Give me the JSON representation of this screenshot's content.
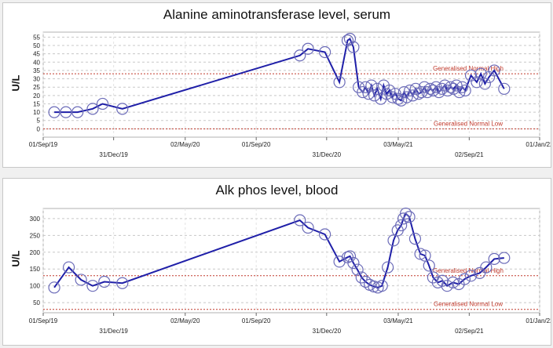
{
  "chart_data": [
    {
      "type": "line",
      "title": "Alanine aminotransferase level, serum",
      "ylabel": "U/L",
      "xlabel": "",
      "ylim": [
        -5,
        58
      ],
      "yticks": [
        0,
        5,
        10,
        15,
        20,
        25,
        30,
        35,
        40,
        45,
        50,
        55
      ],
      "xlim": [
        "2019-09-01",
        "2022-01-01"
      ],
      "xticks": [
        {
          "date": "2019-09-01",
          "label": "01/Sep/19",
          "row": 0
        },
        {
          "date": "2019-12-31",
          "label": "31/Dec/19",
          "row": 1
        },
        {
          "date": "2020-05-02",
          "label": "02/May/20",
          "row": 0
        },
        {
          "date": "2020-09-01",
          "label": "01/Sep/20",
          "row": 0
        },
        {
          "date": "2020-12-31",
          "label": "31/Dec/20",
          "row": 1
        },
        {
          "date": "2021-05-03",
          "label": "03/May/21",
          "row": 0
        },
        {
          "date": "2021-09-02",
          "label": "02/Sep/21",
          "row": 1
        },
        {
          "date": "2022-01-01",
          "label": "01/Jan/22",
          "row": 0
        }
      ],
      "reference_lines": [
        {
          "label": "Generalised Normal High",
          "y": 33,
          "color": "#c0392b"
        },
        {
          "label": "Generalised Normal Low",
          "y": 0,
          "color": "#c0392b"
        }
      ],
      "grid": true,
      "series": [
        {
          "color": "#1f1fa8",
          "points": [
            [
              "2019-09-20",
              10
            ],
            [
              "2019-10-10",
              10
            ],
            [
              "2019-10-30",
              10
            ],
            [
              "2019-11-25",
              12
            ],
            [
              "2019-12-12",
              15
            ],
            [
              "2020-01-15",
              12
            ],
            [
              "2020-11-15",
              44
            ],
            [
              "2020-11-29",
              48
            ],
            [
              "2020-12-28",
              46
            ],
            [
              "2021-01-22",
              28
            ],
            [
              "2021-02-05",
              53
            ],
            [
              "2021-02-09",
              54
            ],
            [
              "2021-02-15",
              49
            ],
            [
              "2021-02-24",
              25
            ],
            [
              "2021-03-03",
              22
            ],
            [
              "2021-03-08",
              25
            ],
            [
              "2021-03-13",
              21
            ],
            [
              "2021-03-18",
              26
            ],
            [
              "2021-03-23",
              20
            ],
            [
              "2021-03-28",
              24
            ],
            [
              "2021-04-03",
              18
            ],
            [
              "2021-04-08",
              26
            ],
            [
              "2021-04-13",
              21
            ],
            [
              "2021-04-18",
              23
            ],
            [
              "2021-04-23",
              19
            ],
            [
              "2021-04-28",
              21
            ],
            [
              "2021-05-03",
              18
            ],
            [
              "2021-05-08",
              17
            ],
            [
              "2021-05-13",
              22
            ],
            [
              "2021-05-18",
              19
            ],
            [
              "2021-05-23",
              23
            ],
            [
              "2021-05-28",
              20
            ],
            [
              "2021-06-02",
              24
            ],
            [
              "2021-06-07",
              21
            ],
            [
              "2021-06-12",
              22
            ],
            [
              "2021-06-17",
              25
            ],
            [
              "2021-06-22",
              22
            ],
            [
              "2021-06-27",
              24
            ],
            [
              "2021-07-02",
              23
            ],
            [
              "2021-07-07",
              25
            ],
            [
              "2021-07-12",
              22
            ],
            [
              "2021-07-17",
              24
            ],
            [
              "2021-07-22",
              26
            ],
            [
              "2021-07-27",
              23
            ],
            [
              "2021-08-01",
              25
            ],
            [
              "2021-08-06",
              24
            ],
            [
              "2021-08-11",
              26
            ],
            [
              "2021-08-16",
              22
            ],
            [
              "2021-08-21",
              25
            ],
            [
              "2021-08-26",
              23
            ],
            [
              "2021-09-05",
              32
            ],
            [
              "2021-09-15",
              28
            ],
            [
              "2021-09-22",
              33
            ],
            [
              "2021-09-29",
              27
            ],
            [
              "2021-10-06",
              31
            ],
            [
              "2021-10-15",
              35
            ],
            [
              "2021-11-01",
              24
            ]
          ]
        }
      ]
    },
    {
      "type": "line",
      "title": "Alk phos level, blood",
      "ylabel": "U/L",
      "xlabel": "",
      "ylim": [
        20,
        330
      ],
      "yticks": [
        50,
        100,
        150,
        200,
        250,
        300
      ],
      "xlim": [
        "2019-09-01",
        "2022-01-01"
      ],
      "xticks": [
        {
          "date": "2019-09-01",
          "label": "01/Sep/19",
          "row": 0
        },
        {
          "date": "2019-12-31",
          "label": "31/Dec/19",
          "row": 1
        },
        {
          "date": "2020-05-02",
          "label": "02/May/20",
          "row": 0
        },
        {
          "date": "2020-09-01",
          "label": "01/Sep/20",
          "row": 0
        },
        {
          "date": "2020-12-31",
          "label": "31/Dec/20",
          "row": 1
        },
        {
          "date": "2021-05-03",
          "label": "03/May/21",
          "row": 0
        },
        {
          "date": "2021-09-02",
          "label": "02/Sep/21",
          "row": 1
        },
        {
          "date": "2022-01-01",
          "label": "01/Jan/22",
          "row": 0
        }
      ],
      "reference_lines": [
        {
          "label": "Generalised Normal High",
          "y": 130,
          "color": "#c0392b"
        },
        {
          "label": "Generalised Normal Low",
          "y": 30,
          "color": "#c0392b"
        }
      ],
      "grid": true,
      "series": [
        {
          "color": "#1f1fa8",
          "points": [
            [
              "2019-09-20",
              95
            ],
            [
              "2019-10-15",
              155
            ],
            [
              "2019-11-05",
              118
            ],
            [
              "2019-11-25",
              100
            ],
            [
              "2019-12-15",
              112
            ],
            [
              "2020-01-15",
              108
            ],
            [
              "2020-11-15",
              295
            ],
            [
              "2020-11-29",
              273
            ],
            [
              "2020-12-28",
              253
            ],
            [
              "2021-01-22",
              172
            ],
            [
              "2021-02-05",
              185
            ],
            [
              "2021-02-09",
              188
            ],
            [
              "2021-02-15",
              168
            ],
            [
              "2021-02-22",
              148
            ],
            [
              "2021-03-01",
              125
            ],
            [
              "2021-03-08",
              112
            ],
            [
              "2021-03-15",
              103
            ],
            [
              "2021-03-22",
              98
            ],
            [
              "2021-03-29",
              95
            ],
            [
              "2021-04-05",
              100
            ],
            [
              "2021-04-15",
              155
            ],
            [
              "2021-04-25",
              235
            ],
            [
              "2021-05-02",
              265
            ],
            [
              "2021-05-08",
              280
            ],
            [
              "2021-05-12",
              300
            ],
            [
              "2021-05-16",
              315
            ],
            [
              "2021-05-22",
              305
            ],
            [
              "2021-06-01",
              240
            ],
            [
              "2021-06-10",
              195
            ],
            [
              "2021-06-18",
              190
            ],
            [
              "2021-06-25",
              160
            ],
            [
              "2021-07-02",
              125
            ],
            [
              "2021-07-10",
              110
            ],
            [
              "2021-07-18",
              115
            ],
            [
              "2021-07-26",
              100
            ],
            [
              "2021-08-05",
              110
            ],
            [
              "2021-08-15",
              105
            ],
            [
              "2021-08-25",
              120
            ],
            [
              "2021-09-05",
              130
            ],
            [
              "2021-09-20",
              138
            ],
            [
              "2021-10-01",
              155
            ],
            [
              "2021-10-15",
              180
            ],
            [
              "2021-11-01",
              183
            ]
          ]
        }
      ]
    }
  ]
}
